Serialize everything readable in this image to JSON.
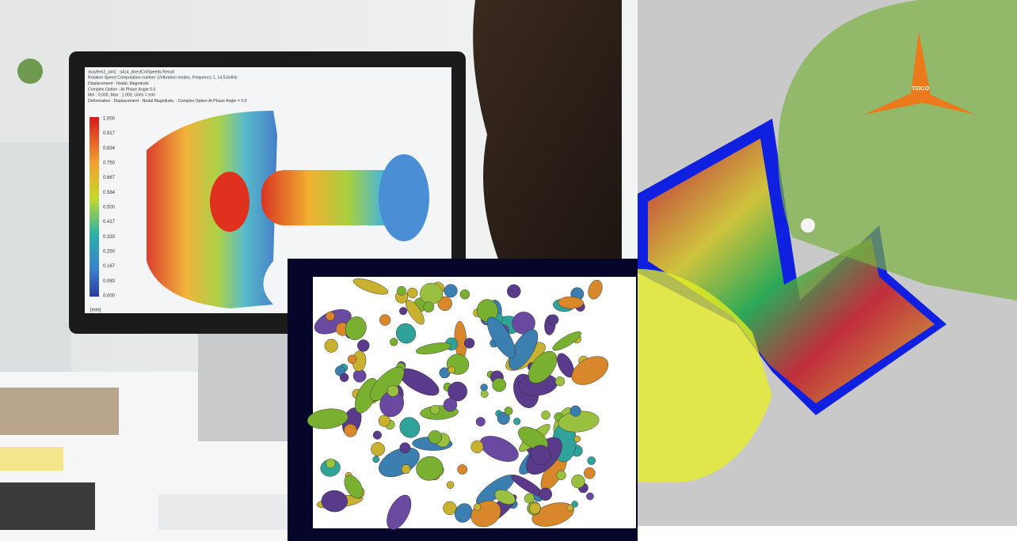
{
  "monitor": {
    "header_lines": [
      "assyfem2_sim1 : s414_directCritSpeeds Result",
      "Rotation Speed Computation number 1/Vibration modes, Frequency 1, 14.5164Hz",
      "Displacement - Nodal, Magnitude",
      "Complex Option : At Phase Angle 0.0",
      "Min : 0.000, Max : 1.000, Units = mm",
      "Deformation : Displacement - Nodal Magnitude, : Complex Option At Phase Angle = 0.0"
    ],
    "legend": [
      "1.000",
      "0.917",
      "0.834",
      "0.750",
      "0.667",
      "0.584",
      "0.500",
      "0.417",
      "0.333",
      "0.250",
      "0.167",
      "0.083",
      "0.000"
    ],
    "unit": "[mm]"
  },
  "logo": "TIDCO"
}
